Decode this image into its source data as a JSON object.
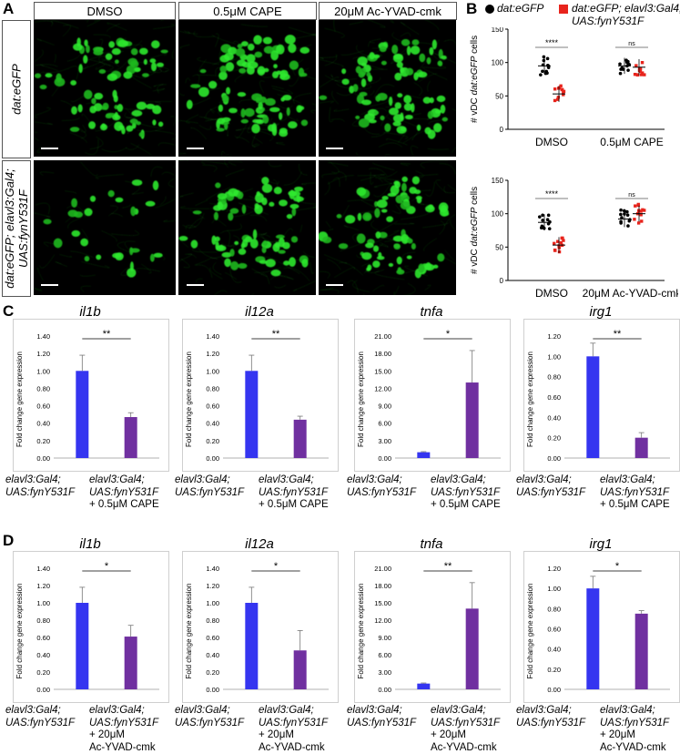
{
  "panel_a": {
    "label": "A",
    "columns": [
      "DMSO",
      "0.5μM CAPE",
      "20μM Ac-YVAD-cmk"
    ],
    "rows": [
      "dat:eGFP",
      "dat:eGFP; elavl3:Gal4;",
      "UAS:fynY531F"
    ]
  },
  "panel_b": {
    "label": "B",
    "legend": {
      "series1": "dat:eGFP",
      "series2_line1": "dat:eGFP; elavl3:Gal4;",
      "series2_line2": "UAS:fynY531F",
      "color1": "#000000",
      "color2": "#e8241c"
    },
    "ylabel_prefix": "# vDC ",
    "ylabel_italic": "dat:eGFP",
    "ylabel_suffix": " cells",
    "ticks": [
      "0",
      "50",
      "100",
      "150"
    ],
    "top": {
      "groups": [
        "DMSO",
        "0.5μM CAPE"
      ],
      "sig": [
        "****",
        "ns"
      ]
    },
    "bottom": {
      "groups": [
        "DMSO",
        "20μM Ac-YVAD-cmk"
      ],
      "sig": [
        "****",
        "ns"
      ]
    }
  },
  "panel_c": {
    "label": "C"
  },
  "panel_d": {
    "label": "D"
  },
  "common": {
    "ylabel": "Fold change gene expression",
    "x1_l1": "elavl3:Gal4;",
    "x1_l2": "UAS:fynY531F",
    "x2_l1": "elavl3:Gal4;",
    "x2_l2": "UAS:fynY531F",
    "c_x2_l3": "+ 0.5μM CAPE",
    "d_x2_l3": "+ 20μM",
    "d_x2_l4": "Ac-YVAD-cmk",
    "blue": "#3535f0",
    "purple": "#7030a0"
  },
  "chart_data": [
    {
      "type": "scatter",
      "panel": "B-top",
      "categories": [
        "DMSO",
        "0.5μM CAPE"
      ],
      "ylim": [
        0,
        150
      ],
      "series": [
        {
          "name": "dat:eGFP",
          "values": [
            95,
            95
          ]
        },
        {
          "name": "dat:eGFP; elavl3:Gal4; UAS:fynY531F",
          "values": [
            53,
            93
          ]
        }
      ],
      "significance": [
        "****",
        "ns"
      ]
    },
    {
      "type": "scatter",
      "panel": "B-bottom",
      "categories": [
        "DMSO",
        "20μM Ac-YVAD-cmk"
      ],
      "ylim": [
        0,
        150
      ],
      "series": [
        {
          "name": "dat:eGFP",
          "values": [
            87,
            92
          ]
        },
        {
          "name": "dat:eGFP; elavl3:Gal4; UAS:fynY531F",
          "values": [
            53,
            100
          ]
        }
      ],
      "significance": [
        "****",
        "ns"
      ]
    },
    {
      "type": "bar",
      "panel": "C",
      "title": "il1b",
      "ylim": [
        0,
        1.4
      ],
      "ticks": [
        "0.00",
        "0.20",
        "0.40",
        "0.60",
        "0.80",
        "1.00",
        "1.20",
        "1.40"
      ],
      "values": [
        1.0,
        0.47
      ],
      "errors": [
        0.18,
        0.05
      ],
      "significance": "**"
    },
    {
      "type": "bar",
      "panel": "C",
      "title": "il12a",
      "ylim": [
        0,
        1.4
      ],
      "ticks": [
        "0.00",
        "0.20",
        "0.40",
        "0.60",
        "0.80",
        "1.00",
        "1.20",
        "1.40"
      ],
      "values": [
        1.0,
        0.44
      ],
      "errors": [
        0.18,
        0.04
      ],
      "significance": "**"
    },
    {
      "type": "bar",
      "panel": "C",
      "title": "tnfa",
      "ylim": [
        0,
        21
      ],
      "ticks": [
        "0.00",
        "3.00",
        "6.00",
        "9.00",
        "12.00",
        "15.00",
        "18.00",
        "21.00"
      ],
      "values": [
        1.0,
        13.0
      ],
      "errors": [
        0.1,
        5.5
      ],
      "significance": "*"
    },
    {
      "type": "bar",
      "panel": "C",
      "title": "irg1",
      "ylim": [
        0,
        1.2
      ],
      "ticks": [
        "0.00",
        "0.20",
        "0.40",
        "0.60",
        "0.80",
        "1.00",
        "1.20"
      ],
      "values": [
        1.0,
        0.2
      ],
      "errors": [
        0.13,
        0.05
      ],
      "significance": "**"
    },
    {
      "type": "bar",
      "panel": "D",
      "title": "il1b",
      "ylim": [
        0,
        1.4
      ],
      "ticks": [
        "0.00",
        "0.20",
        "0.40",
        "0.60",
        "0.80",
        "1.00",
        "1.20",
        "1.40"
      ],
      "values": [
        1.0,
        0.61
      ],
      "errors": [
        0.18,
        0.13
      ],
      "significance": "*"
    },
    {
      "type": "bar",
      "panel": "D",
      "title": "il12a",
      "ylim": [
        0,
        1.4
      ],
      "ticks": [
        "0.00",
        "0.20",
        "0.40",
        "0.60",
        "0.80",
        "1.00",
        "1.20",
        "1.40"
      ],
      "values": [
        1.0,
        0.45
      ],
      "errors": [
        0.18,
        0.23
      ],
      "significance": "*"
    },
    {
      "type": "bar",
      "panel": "D",
      "title": "tnfa",
      "ylim": [
        0,
        21
      ],
      "ticks": [
        "0.00",
        "3.00",
        "6.00",
        "9.00",
        "12.00",
        "15.00",
        "18.00",
        "21.00"
      ],
      "values": [
        1.0,
        14.0
      ],
      "errors": [
        0.1,
        4.5
      ],
      "significance": "**"
    },
    {
      "type": "bar",
      "panel": "D",
      "title": "irg1",
      "ylim": [
        0,
        1.2
      ],
      "ticks": [
        "0.00",
        "0.20",
        "0.40",
        "0.60",
        "0.80",
        "1.00",
        "1.20"
      ],
      "values": [
        1.0,
        0.75
      ],
      "errors": [
        0.12,
        0.03
      ],
      "significance": "*"
    }
  ]
}
